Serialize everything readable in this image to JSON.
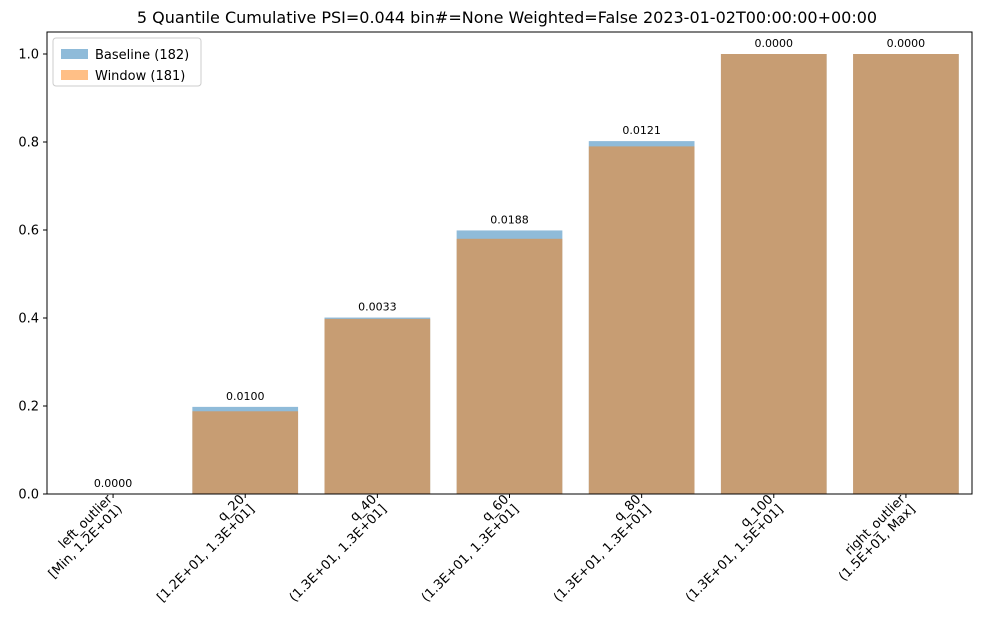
{
  "chart_data": {
    "type": "bar",
    "title": "5 Quantile Cumulative PSI=0.044 bin#=None Weighted=False 2023-01-02T00:00:00+00:00",
    "xlabel": "",
    "ylabel": "",
    "ylim": [
      0,
      1.05
    ],
    "yticks": [
      "0.0",
      "0.2",
      "0.4",
      "0.6",
      "0.8",
      "1.0"
    ],
    "categories": [
      [
        "left_outlier",
        "[Min, 1.2E+01)"
      ],
      [
        "q_20",
        "[1.2E+01, 1.3E+01]"
      ],
      [
        "q_40",
        "(1.3E+01, 1.3E+01]"
      ],
      [
        "q_60",
        "(1.3E+01, 1.3E+01]"
      ],
      [
        "q_80",
        "(1.3E+01, 1.3E+01]"
      ],
      [
        "q_100",
        "(1.3E+01, 1.5E+01]"
      ],
      [
        "right_outlier",
        "(1.5E+01, Max]"
      ]
    ],
    "series": [
      {
        "name": "Baseline (182)",
        "color": "#1f77b4",
        "opacity": 0.5,
        "values": [
          0.0,
          0.198,
          0.401,
          0.599,
          0.802,
          1.0,
          1.0
        ]
      },
      {
        "name": "Window (181)",
        "color": "#ff7f0e",
        "opacity": 0.5,
        "values": [
          0.0,
          0.188,
          0.398,
          0.58,
          0.79,
          1.0,
          1.0
        ]
      }
    ],
    "bar_labels": [
      "0.0000",
      "0.0100",
      "0.0033",
      "0.0188",
      "0.0121",
      "0.0000",
      "0.0000"
    ],
    "legend": "top-left",
    "grid": false
  }
}
